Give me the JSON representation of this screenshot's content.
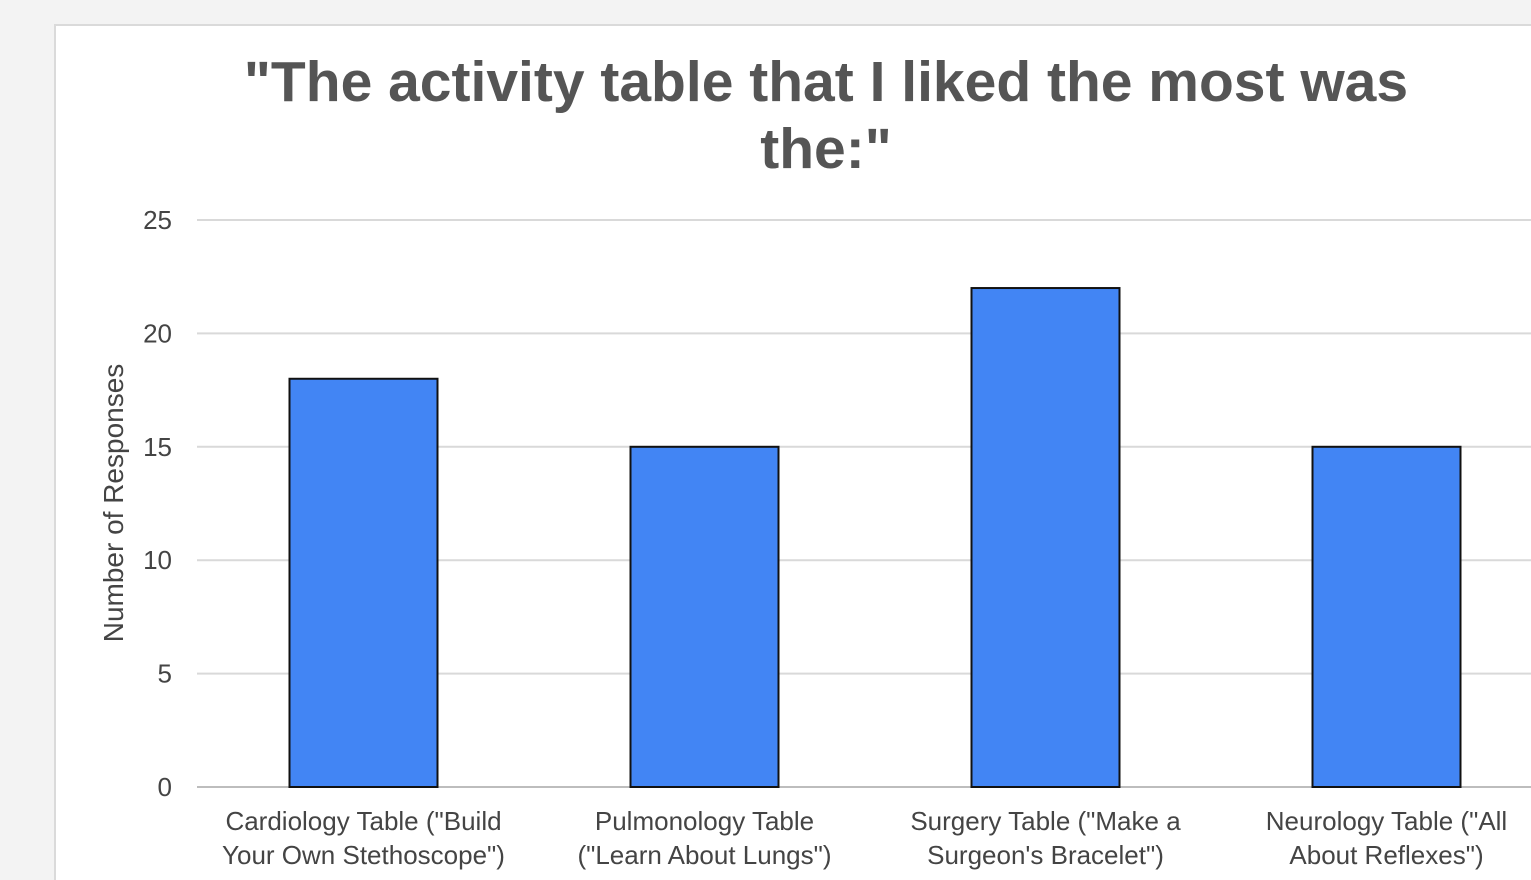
{
  "chart_data": {
    "type": "bar",
    "title": "\"The activity table that I liked the most was the:\"",
    "xlabel": "",
    "ylabel": "Number of Responses",
    "categories": [
      "Cardiology Table (\"Build Your Own Stethoscope\")",
      "Pulmonology Table (\"Learn About Lungs\")",
      "Surgery Table (\"Make a Surgeon's Bracelet\")",
      "Neurology Table (\"All About Reflexes\")"
    ],
    "category_lines": [
      [
        "Cardiology Table (\"Build",
        "Your Own Stethoscope\")"
      ],
      [
        "Pulmonology Table",
        "(\"Learn About Lungs\")"
      ],
      [
        "Surgery Table (\"Make a",
        "Surgeon's Bracelet\")"
      ],
      [
        "Neurology Table (\"All",
        "About Reflexes\")"
      ]
    ],
    "values": [
      18,
      15,
      22,
      15
    ],
    "ylim": [
      0,
      25
    ],
    "yticks": [
      0,
      5,
      10,
      15,
      20,
      25
    ],
    "grid": true,
    "bar_color": "#4285f4",
    "bar_edge_color": "#111111",
    "gridline_color": "#d9d9d9",
    "text_color": "#444444",
    "title_color": "#555555"
  }
}
